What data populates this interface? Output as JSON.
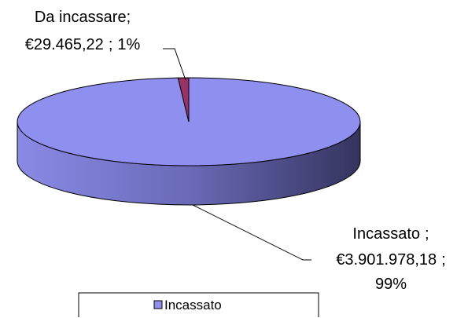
{
  "chart_data": {
    "type": "pie3d",
    "categories": [
      "Incassato",
      "Da incassare"
    ],
    "values": [
      99,
      1
    ],
    "value_labels": [
      "99%",
      "1%"
    ],
    "amounts": [
      3901978.18,
      29465.22
    ],
    "amount_labels": [
      "€3.901.978,18",
      "€29.465,22"
    ],
    "label_separator": ";",
    "colors": [
      "#8f8ff0",
      "#993366"
    ],
    "legend": "bottom"
  }
}
